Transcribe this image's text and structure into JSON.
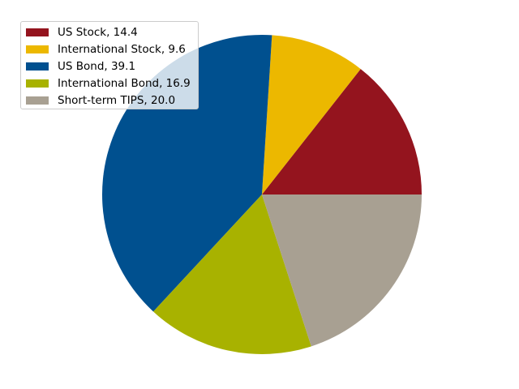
{
  "chart_data": {
    "type": "pie",
    "categories": [
      "US Stock",
      "International Stock",
      "US Bond",
      "International Bond",
      "Short-term TIPS"
    ],
    "values": [
      14.4,
      9.6,
      39.1,
      16.9,
      20.0
    ],
    "colors": [
      "#94141e",
      "#ecb800",
      "#00508f",
      "#a8b200",
      "#a8a092"
    ],
    "legend_labels": [
      "US Stock, 14.4",
      "International Stock, 9.6",
      "US Bond, 39.1",
      "International Bond, 16.9",
      "Short-term TIPS, 20.0"
    ],
    "start_angle_deg": 0,
    "direction": "counterclockwise",
    "legend_placement": "upper-left",
    "title": "",
    "xlabel": "",
    "ylabel": ""
  }
}
